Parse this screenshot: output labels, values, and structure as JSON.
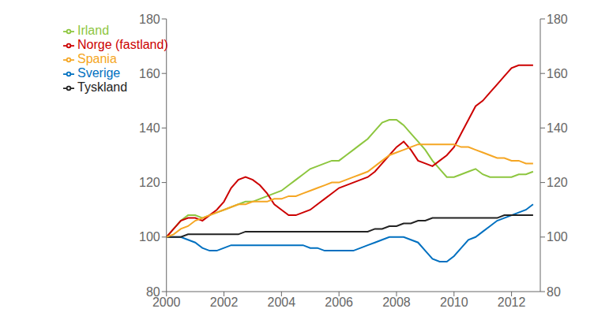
{
  "chart_data": {
    "type": "line",
    "x": [
      2000,
      2000.25,
      2000.5,
      2000.75,
      2001,
      2001.25,
      2001.5,
      2001.75,
      2002,
      2002.25,
      2002.5,
      2002.75,
      2003,
      2003.25,
      2003.5,
      2003.75,
      2004,
      2004.25,
      2004.5,
      2004.75,
      2005,
      2005.25,
      2005.5,
      2005.75,
      2006,
      2006.25,
      2006.5,
      2006.75,
      2007,
      2007.25,
      2007.5,
      2007.75,
      2008,
      2008.25,
      2008.5,
      2008.75,
      2009,
      2009.25,
      2009.5,
      2009.75,
      2010,
      2010.25,
      2010.5,
      2010.75,
      2011,
      2011.25,
      2011.5,
      2011.75,
      2012,
      2012.25,
      2012.5,
      2012.75
    ],
    "series": [
      {
        "name": "Irland",
        "color": "#8DC63F",
        "values": [
          100,
          103,
          106,
          108,
          108,
          107,
          108,
          109,
          110,
          111,
          112,
          113,
          113,
          114,
          115,
          116,
          117,
          119,
          121,
          123,
          125,
          126,
          127,
          128,
          128,
          130,
          132,
          134,
          136,
          139,
          142,
          143,
          143,
          141,
          138,
          135,
          132,
          128,
          125,
          122,
          122,
          123,
          124,
          125,
          123,
          122,
          122,
          122,
          122,
          123,
          123,
          124
        ]
      },
      {
        "name": "Norge (fastland)",
        "color": "#CC0000",
        "values": [
          100,
          103,
          106,
          107,
          107,
          106,
          108,
          110,
          113,
          118,
          121,
          122,
          121,
          119,
          116,
          112,
          110,
          108,
          108,
          109,
          110,
          112,
          114,
          116,
          118,
          119,
          120,
          121,
          122,
          124,
          127,
          130,
          133,
          135,
          132,
          128,
          127,
          126,
          128,
          130,
          133,
          138,
          143,
          148,
          150,
          153,
          156,
          159,
          162,
          163,
          163,
          163
        ]
      },
      {
        "name": "Sverige",
        "color": "#0070C0",
        "values": [
          100,
          100,
          100,
          99,
          98,
          96,
          95,
          95,
          96,
          97,
          97,
          97,
          97,
          97,
          97,
          97,
          97,
          97,
          97,
          97,
          96,
          96,
          95,
          95,
          95,
          95,
          95,
          96,
          97,
          98,
          99,
          100,
          100,
          100,
          99,
          98,
          95,
          92,
          91,
          91,
          93,
          96,
          99,
          100,
          102,
          104,
          106,
          107,
          108,
          109,
          110,
          112
        ]
      },
      {
        "name": "Tyskland",
        "color": "#222222",
        "values": [
          100,
          100,
          100,
          101,
          101,
          101,
          101,
          101,
          101,
          101,
          101,
          102,
          102,
          102,
          102,
          102,
          102,
          102,
          102,
          102,
          102,
          102,
          102,
          102,
          102,
          102,
          102,
          102,
          102,
          103,
          103,
          104,
          104,
          105,
          105,
          106,
          106,
          107,
          107,
          107,
          107,
          107,
          107,
          107,
          107,
          107,
          107,
          108,
          108,
          108,
          108,
          108
        ]
      },
      {
        "name": "Spania",
        "color": "#F5A623",
        "values": [
          100,
          101,
          103,
          104,
          106,
          107,
          108,
          109,
          110,
          111,
          112,
          112,
          113,
          113,
          113,
          114,
          114,
          115,
          115,
          116,
          117,
          118,
          119,
          120,
          120,
          121,
          122,
          123,
          124,
          126,
          128,
          130,
          131,
          132,
          133,
          134,
          134,
          134,
          134,
          134,
          134,
          133,
          133,
          132,
          131,
          130,
          129,
          129,
          128,
          128,
          127,
          127
        ]
      }
    ],
    "xlim": [
      2000,
      2013
    ],
    "xticks": [
      2000,
      2002,
      2004,
      2006,
      2008,
      2010,
      2012
    ],
    "ylim": [
      80,
      180
    ],
    "yticks": [
      80,
      100,
      120,
      140,
      160,
      180
    ],
    "y2lim": [
      80,
      180
    ],
    "y2ticks": [
      80,
      100,
      120,
      140,
      160,
      180
    ],
    "grid": false,
    "legend": "upper left"
  }
}
